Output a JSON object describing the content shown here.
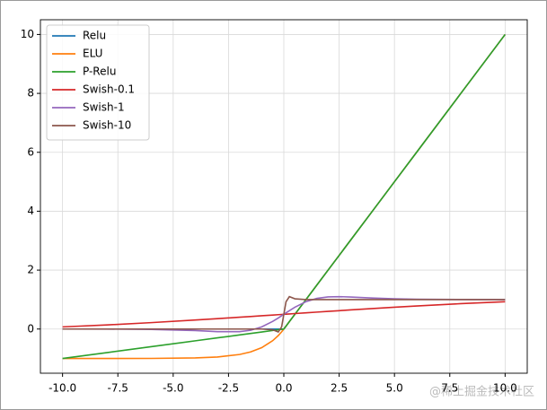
{
  "chart_data": {
    "type": "line",
    "x": [
      -10,
      -8,
      -6,
      -4,
      -3,
      -2,
      -1.5,
      -1,
      -0.5,
      -0.25,
      -0.1,
      0,
      0.1,
      0.25,
      0.5,
      1,
      1.5,
      2,
      2.5,
      3,
      4,
      5,
      6,
      8,
      10
    ],
    "series": [
      {
        "name": "Relu",
        "color": "#1f77b4",
        "values": [
          0,
          0,
          0,
          0,
          0,
          0,
          0,
          0,
          0,
          0,
          0,
          0,
          0.1,
          0.25,
          0.5,
          1,
          1.5,
          2,
          2.5,
          3,
          4,
          5,
          6,
          8,
          10
        ]
      },
      {
        "name": "ELU",
        "color": "#ff7f0e",
        "values": [
          -1.0,
          -0.9997,
          -0.9975,
          -0.9817,
          -0.9502,
          -0.8647,
          -0.7769,
          -0.6321,
          -0.3935,
          -0.2212,
          -0.0952,
          0,
          0.1,
          0.25,
          0.5,
          1,
          1.5,
          2,
          2.5,
          3,
          4,
          5,
          6,
          8,
          10
        ]
      },
      {
        "name": "P-Relu",
        "color": "#2ca02c",
        "values": [
          -1,
          -0.8,
          -0.6,
          -0.4,
          -0.3,
          -0.2,
          -0.15,
          -0.1,
          -0.05,
          -0.025,
          -0.01,
          0,
          0.1,
          0.25,
          0.5,
          1,
          1.5,
          2,
          2.5,
          3,
          4,
          5,
          6,
          8,
          10
        ]
      },
      {
        "name": "Swish-0.1",
        "color": "#d62728",
        "values": [
          0.0723,
          0.1389,
          0.217,
          0.3052,
          0.3523,
          0.4007,
          0.4253,
          0.4501,
          0.475,
          0.4875,
          0.495,
          0.5,
          0.505,
          0.5125,
          0.525,
          0.5499,
          0.5747,
          0.5993,
          0.6237,
          0.6477,
          0.6948,
          0.74,
          0.783,
          0.8611,
          0.9277
        ]
      },
      {
        "name": "Swish-1",
        "color": "#9467bd",
        "values": [
          -0.0004,
          -0.0023,
          -0.0124,
          -0.0527,
          -0.0881,
          -0.0908,
          -0.0413,
          0.0723,
          0.26,
          0.3763,
          0.4501,
          0.5,
          0.5499,
          0.6237,
          0.74,
          0.9277,
          1.0413,
          1.0908,
          1.0995,
          1.0881,
          1.0527,
          1.0265,
          1.0123,
          1.0024,
          1.0004
        ]
      },
      {
        "name": "Swish-10",
        "color": "#8c564b",
        "values": [
          0,
          0,
          0,
          0,
          0,
          0,
          0,
          -0.0004,
          -0.0265,
          -0.0995,
          0.0723,
          0.5,
          0.9277,
          1.0995,
          1.0265,
          1.0004,
          1,
          1,
          1,
          1,
          1,
          1,
          1,
          1,
          1
        ]
      }
    ],
    "xlim": [
      -11,
      11
    ],
    "xticks": [
      {
        "value": -10,
        "label": "-10.0"
      },
      {
        "value": -7.5,
        "label": "-7.5"
      },
      {
        "value": -5,
        "label": "-5.0"
      },
      {
        "value": -2.5,
        "label": "-2.5"
      },
      {
        "value": 0,
        "label": "0.0"
      },
      {
        "value": 2.5,
        "label": "2.5"
      },
      {
        "value": 5,
        "label": "5.0"
      },
      {
        "value": 7.5,
        "label": "7.5"
      },
      {
        "value": 10,
        "label": "10.0"
      }
    ],
    "ylim": [
      -1.5,
      10.5
    ],
    "yticks": [
      0,
      2,
      4,
      6,
      8,
      10
    ],
    "grid": true,
    "legend": "upper-left",
    "watermark": "@稀土掘金技术社区"
  }
}
